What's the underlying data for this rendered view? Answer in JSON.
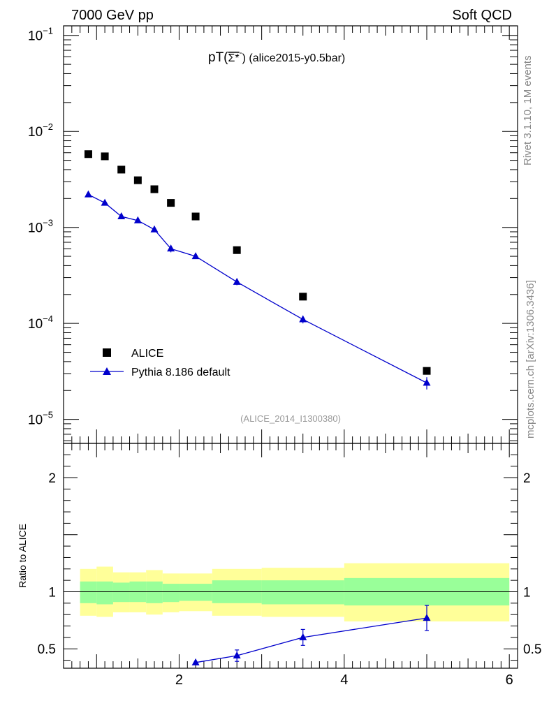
{
  "header": {
    "left": "7000 GeV pp",
    "right": "Soft QCD"
  },
  "side_labels": {
    "rivet": "Rivet 3.1.10,  1M events",
    "mcplots": "mcplots.cern.ch [arXiv:1306.3436]"
  },
  "title": {
    "prefix": "pT(",
    "particle": "Σ*",
    "bar_sup": "-",
    "suffix": ") (alice2015-y0.5bar)"
  },
  "watermark": "(ALICE_2014_I1300380)",
  "legend": {
    "data_label": "ALICE",
    "mc_label": "Pythia 8.186 default"
  },
  "ratio_ylabel": "Ratio to ALICE",
  "colors": {
    "data": "#000000",
    "mc": "#0000cc",
    "band_outer": "#ffff99",
    "band_inner": "#99ff99"
  },
  "chart_data": [
    {
      "type": "scatter",
      "panel": "main",
      "yscale": "log",
      "xlim": [
        0.6,
        6.1
      ],
      "ylim_exponent": [
        -5.25,
        -0.9
      ],
      "y_tick_labels": [
        {
          "base": "10",
          "exp": "−5",
          "value_exp": -5
        },
        {
          "base": "10",
          "exp": "−4",
          "value_exp": -4
        },
        {
          "base": "10",
          "exp": "−3",
          "value_exp": -3
        },
        {
          "base": "10",
          "exp": "−2",
          "value_exp": -2
        },
        {
          "base": "10",
          "exp": "−1",
          "value_exp": -1
        }
      ],
      "series": [
        {
          "name": "ALICE",
          "marker": "square",
          "points": [
            {
              "x": 0.9,
              "y": 0.0058
            },
            {
              "x": 1.1,
              "y": 0.0055
            },
            {
              "x": 1.3,
              "y": 0.004
            },
            {
              "x": 1.5,
              "y": 0.0031
            },
            {
              "x": 1.7,
              "y": 0.0025
            },
            {
              "x": 1.9,
              "y": 0.0018
            },
            {
              "x": 2.2,
              "y": 0.0013
            },
            {
              "x": 2.7,
              "y": 0.00058
            },
            {
              "x": 3.5,
              "y": 0.00019
            },
            {
              "x": 5.0,
              "y": 3.2e-05
            }
          ]
        },
        {
          "name": "Pythia 8.186 default",
          "marker": "triangle",
          "points": [
            {
              "x": 0.9,
              "y": 0.0022,
              "err": 7e-05
            },
            {
              "x": 1.1,
              "y": 0.0018,
              "err": 6e-05
            },
            {
              "x": 1.3,
              "y": 0.0013,
              "err": 5e-05
            },
            {
              "x": 1.5,
              "y": 0.00118,
              "err": 5e-05
            },
            {
              "x": 1.7,
              "y": 0.00095,
              "err": 4e-05
            },
            {
              "x": 1.9,
              "y": 0.0006,
              "err": 5e-05
            },
            {
              "x": 2.2,
              "y": 0.0005,
              "err": 2e-05
            },
            {
              "x": 2.7,
              "y": 0.00027,
              "err": 2e-05
            },
            {
              "x": 3.5,
              "y": 0.00011,
              "err": 1e-05
            },
            {
              "x": 5.0,
              "y": 2.4e-05,
              "err": 3.5e-06
            }
          ]
        }
      ]
    },
    {
      "type": "line",
      "panel": "ratio",
      "xlim": [
        0.6,
        6.1
      ],
      "ylim": [
        0.33,
        2.3
      ],
      "ylabel": "Ratio to ALICE",
      "x_ticks": [
        {
          "value": 2,
          "label": "2"
        },
        {
          "value": 4,
          "label": "4"
        },
        {
          "value": 6,
          "label": "6"
        }
      ],
      "y_ticks": [
        {
          "value": 0.5,
          "label": "0.5"
        },
        {
          "value": 1,
          "label": "1"
        },
        {
          "value": 2,
          "label": "2"
        }
      ],
      "bands": [
        {
          "xlo": 0.8,
          "xhi": 1.0,
          "outer": [
            0.79,
            1.2
          ],
          "inner": [
            0.9,
            1.09
          ]
        },
        {
          "xlo": 1.0,
          "xhi": 1.2,
          "outer": [
            0.78,
            1.22
          ],
          "inner": [
            0.89,
            1.09
          ]
        },
        {
          "xlo": 1.2,
          "xhi": 1.4,
          "outer": [
            0.82,
            1.17
          ],
          "inner": [
            0.91,
            1.08
          ]
        },
        {
          "xlo": 1.4,
          "xhi": 1.6,
          "outer": [
            0.82,
            1.17
          ],
          "inner": [
            0.91,
            1.09
          ]
        },
        {
          "xlo": 1.6,
          "xhi": 1.8,
          "outer": [
            0.8,
            1.19
          ],
          "inner": [
            0.9,
            1.09
          ]
        },
        {
          "xlo": 1.8,
          "xhi": 2.0,
          "outer": [
            0.82,
            1.16
          ],
          "inner": [
            0.91,
            1.07
          ]
        },
        {
          "xlo": 2.0,
          "xhi": 2.4,
          "outer": [
            0.83,
            1.16
          ],
          "inner": [
            0.92,
            1.07
          ]
        },
        {
          "xlo": 2.4,
          "xhi": 3.0,
          "outer": [
            0.79,
            1.2
          ],
          "inner": [
            0.9,
            1.1
          ]
        },
        {
          "xlo": 3.0,
          "xhi": 4.0,
          "outer": [
            0.78,
            1.21
          ],
          "inner": [
            0.89,
            1.1
          ]
        },
        {
          "xlo": 4.0,
          "xhi": 6.0,
          "outer": [
            0.74,
            1.25
          ],
          "inner": [
            0.88,
            1.12
          ]
        }
      ],
      "reference_line": 1,
      "series": [
        {
          "name": "Pythia 8.186 default",
          "points": [
            {
              "x": 2.2,
              "y": 0.38
            },
            {
              "x": 2.7,
              "y": 0.44,
              "err": 0.05
            },
            {
              "x": 3.5,
              "y": 0.6,
              "err": 0.07
            },
            {
              "x": 5.0,
              "y": 0.77,
              "err": 0.11
            }
          ]
        }
      ]
    }
  ]
}
